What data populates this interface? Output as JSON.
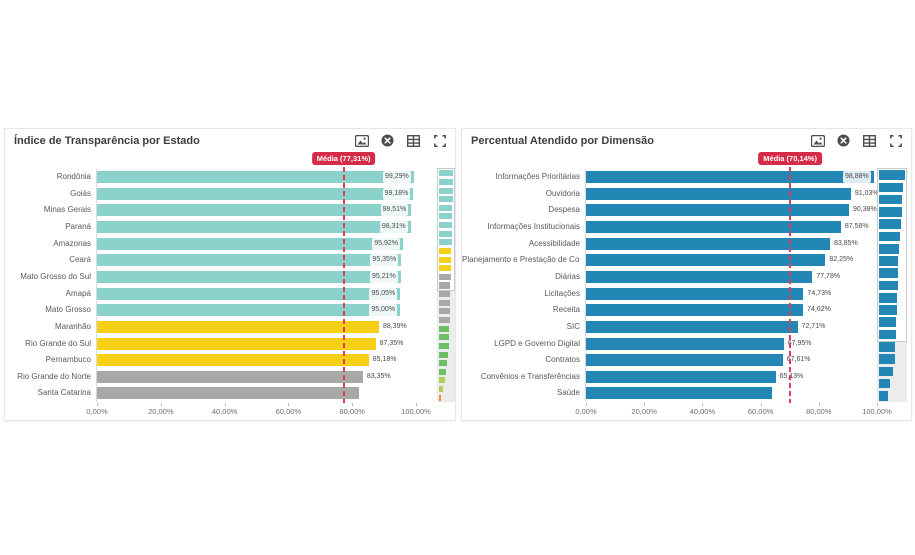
{
  "palette": {
    "teal": "#8ad2cb",
    "yellow": "#f6cf17",
    "gray": "#a8a8a8",
    "blue": "#2287b4",
    "green": "#6cbf66",
    "light_green": "#b2cf55",
    "orange": "#ef8b3f",
    "mean_red": "#d52b47",
    "mean_line_red": "#e23b55",
    "icon_gray": "#4d4d4d"
  },
  "cards": [
    {
      "title": "Índice de Transparência por Estado",
      "toolbar": [
        "image-icon",
        "close-circle-icon",
        "table-icon",
        "fullscreen-icon"
      ]
    },
    {
      "title": "Percentual Atendido por Dimensão",
      "toolbar": [
        "image-icon",
        "close-circle-icon",
        "table-icon",
        "fullscreen-icon"
      ]
    }
  ],
  "chart_data": [
    {
      "type": "bar",
      "orientation": "horizontal",
      "title": "Índice de Transparência por Estado",
      "xlim": [
        0,
        100
      ],
      "x_ticks": [
        "0,00%",
        "20,00%",
        "40,00%",
        "60,00%",
        "80,00%",
        "100,00%"
      ],
      "x_tick_values": [
        0,
        20,
        40,
        60,
        80,
        100
      ],
      "categories": [
        "Rondônia",
        "Goiás",
        "Minas Gerais",
        "Paraná",
        "Amazonas",
        "Ceará",
        "Mato Grosso do Sul",
        "Amapá",
        "Mato Grosso",
        "Maranhão",
        "Rio Grande do Sul",
        "Pernambuco",
        "Rio Grande do Norte",
        "Santa Catarina"
      ],
      "values": [
        99.29,
        99.18,
        98.51,
        98.31,
        95.92,
        95.35,
        95.21,
        95.05,
        95.0,
        88.39,
        87.35,
        85.18,
        83.35,
        82.0
      ],
      "value_labels": [
        "99,29%",
        "99,18%",
        "98,51%",
        "98,31%",
        "95,92%",
        "95,35%",
        "95,21%",
        "95,05%",
        "95,00%",
        "88,39%",
        "87,35%",
        "85,18%",
        "83,35%",
        ""
      ],
      "bar_colors": [
        "#8ad2cb",
        "#8ad2cb",
        "#8ad2cb",
        "#8ad2cb",
        "#8ad2cb",
        "#8ad2cb",
        "#8ad2cb",
        "#8ad2cb",
        "#8ad2cb",
        "#f6cf17",
        "#f6cf17",
        "#f6cf17",
        "#a8a8a8",
        "#a8a8a8"
      ],
      "mean": {
        "label": "Média (77,31%)",
        "value": 77.31
      },
      "minimap": {
        "visible_rows": 14,
        "values": [
          99.29,
          99.18,
          98.51,
          98.31,
          95.92,
          95.35,
          95.21,
          95.05,
          95.0,
          88.39,
          87.35,
          85.18,
          83.35,
          82.0,
          80.5,
          79.0,
          77.5,
          76.0,
          74.0,
          71.5,
          68.0,
          63.0,
          56.0,
          48.0,
          40.0,
          31.0,
          17.0
        ],
        "colors": [
          "#8ad2cb",
          "#8ad2cb",
          "#8ad2cb",
          "#8ad2cb",
          "#8ad2cb",
          "#8ad2cb",
          "#8ad2cb",
          "#8ad2cb",
          "#8ad2cb",
          "#f6cf17",
          "#f6cf17",
          "#f6cf17",
          "#a8a8a8",
          "#a8a8a8",
          "#a8a8a8",
          "#a8a8a8",
          "#a8a8a8",
          "#a8a8a8",
          "#6cbf66",
          "#6cbf66",
          "#6cbf66",
          "#6cbf66",
          "#6cbf66",
          "#6cbf66",
          "#b2cf55",
          "#b2cf55",
          "#ef8b3f"
        ]
      }
    },
    {
      "type": "bar",
      "orientation": "horizontal",
      "title": "Percentual Atendido por Dimensão",
      "xlim": [
        0,
        100
      ],
      "x_ticks": [
        "0,00%",
        "20,00%",
        "40,00%",
        "60,00%",
        "80,00%",
        "100,00%"
      ],
      "x_tick_values": [
        0,
        20,
        40,
        60,
        80,
        100
      ],
      "categories": [
        "Informações Prioritárias",
        "Ouvidoria",
        "Despesa",
        "Informações Institucionais",
        "Acessibilidade",
        "Planejamento e Prestação de Co...",
        "Diárias",
        "Licitações",
        "Receita",
        "SIC",
        "LGPD e Governo Digital",
        "Contratos",
        "Convênios e Transferências",
        "Saúde"
      ],
      "values": [
        98.88,
        91.03,
        90.38,
        87.58,
        83.85,
        82.25,
        77.78,
        74.73,
        74.62,
        72.71,
        67.95,
        67.61,
        65.13,
        64.0
      ],
      "value_labels": [
        "98,88%",
        "91,03%",
        "90,38%",
        "87,58%",
        "83,85%",
        "82,25%",
        "77,78%",
        "74,73%",
        "74,62%",
        "72,71%",
        "67,95%",
        "67,61%",
        "65,13%",
        ""
      ],
      "bar_colors": [
        "#2287b4",
        "#2287b4",
        "#2287b4",
        "#2287b4",
        "#2287b4",
        "#2287b4",
        "#2287b4",
        "#2287b4",
        "#2287b4",
        "#2287b4",
        "#2287b4",
        "#2287b4",
        "#2287b4",
        "#2287b4"
      ],
      "mean": {
        "label": "Média (70,14%)",
        "value": 70.14
      },
      "minimap": {
        "visible_rows": 14,
        "values": [
          98.88,
          91.03,
          90.38,
          87.58,
          83.85,
          82.25,
          77.78,
          74.73,
          74.62,
          72.71,
          67.95,
          67.61,
          65.13,
          64.0,
          62.0,
          60.0,
          55.0,
          43.0,
          34.0
        ],
        "colors": [
          "#2287b4",
          "#2287b4",
          "#2287b4",
          "#2287b4",
          "#2287b4",
          "#2287b4",
          "#2287b4",
          "#2287b4",
          "#2287b4",
          "#2287b4",
          "#2287b4",
          "#2287b4",
          "#2287b4",
          "#2287b4",
          "#2287b4",
          "#2287b4",
          "#2287b4",
          "#2287b4",
          "#2287b4"
        ]
      }
    }
  ]
}
